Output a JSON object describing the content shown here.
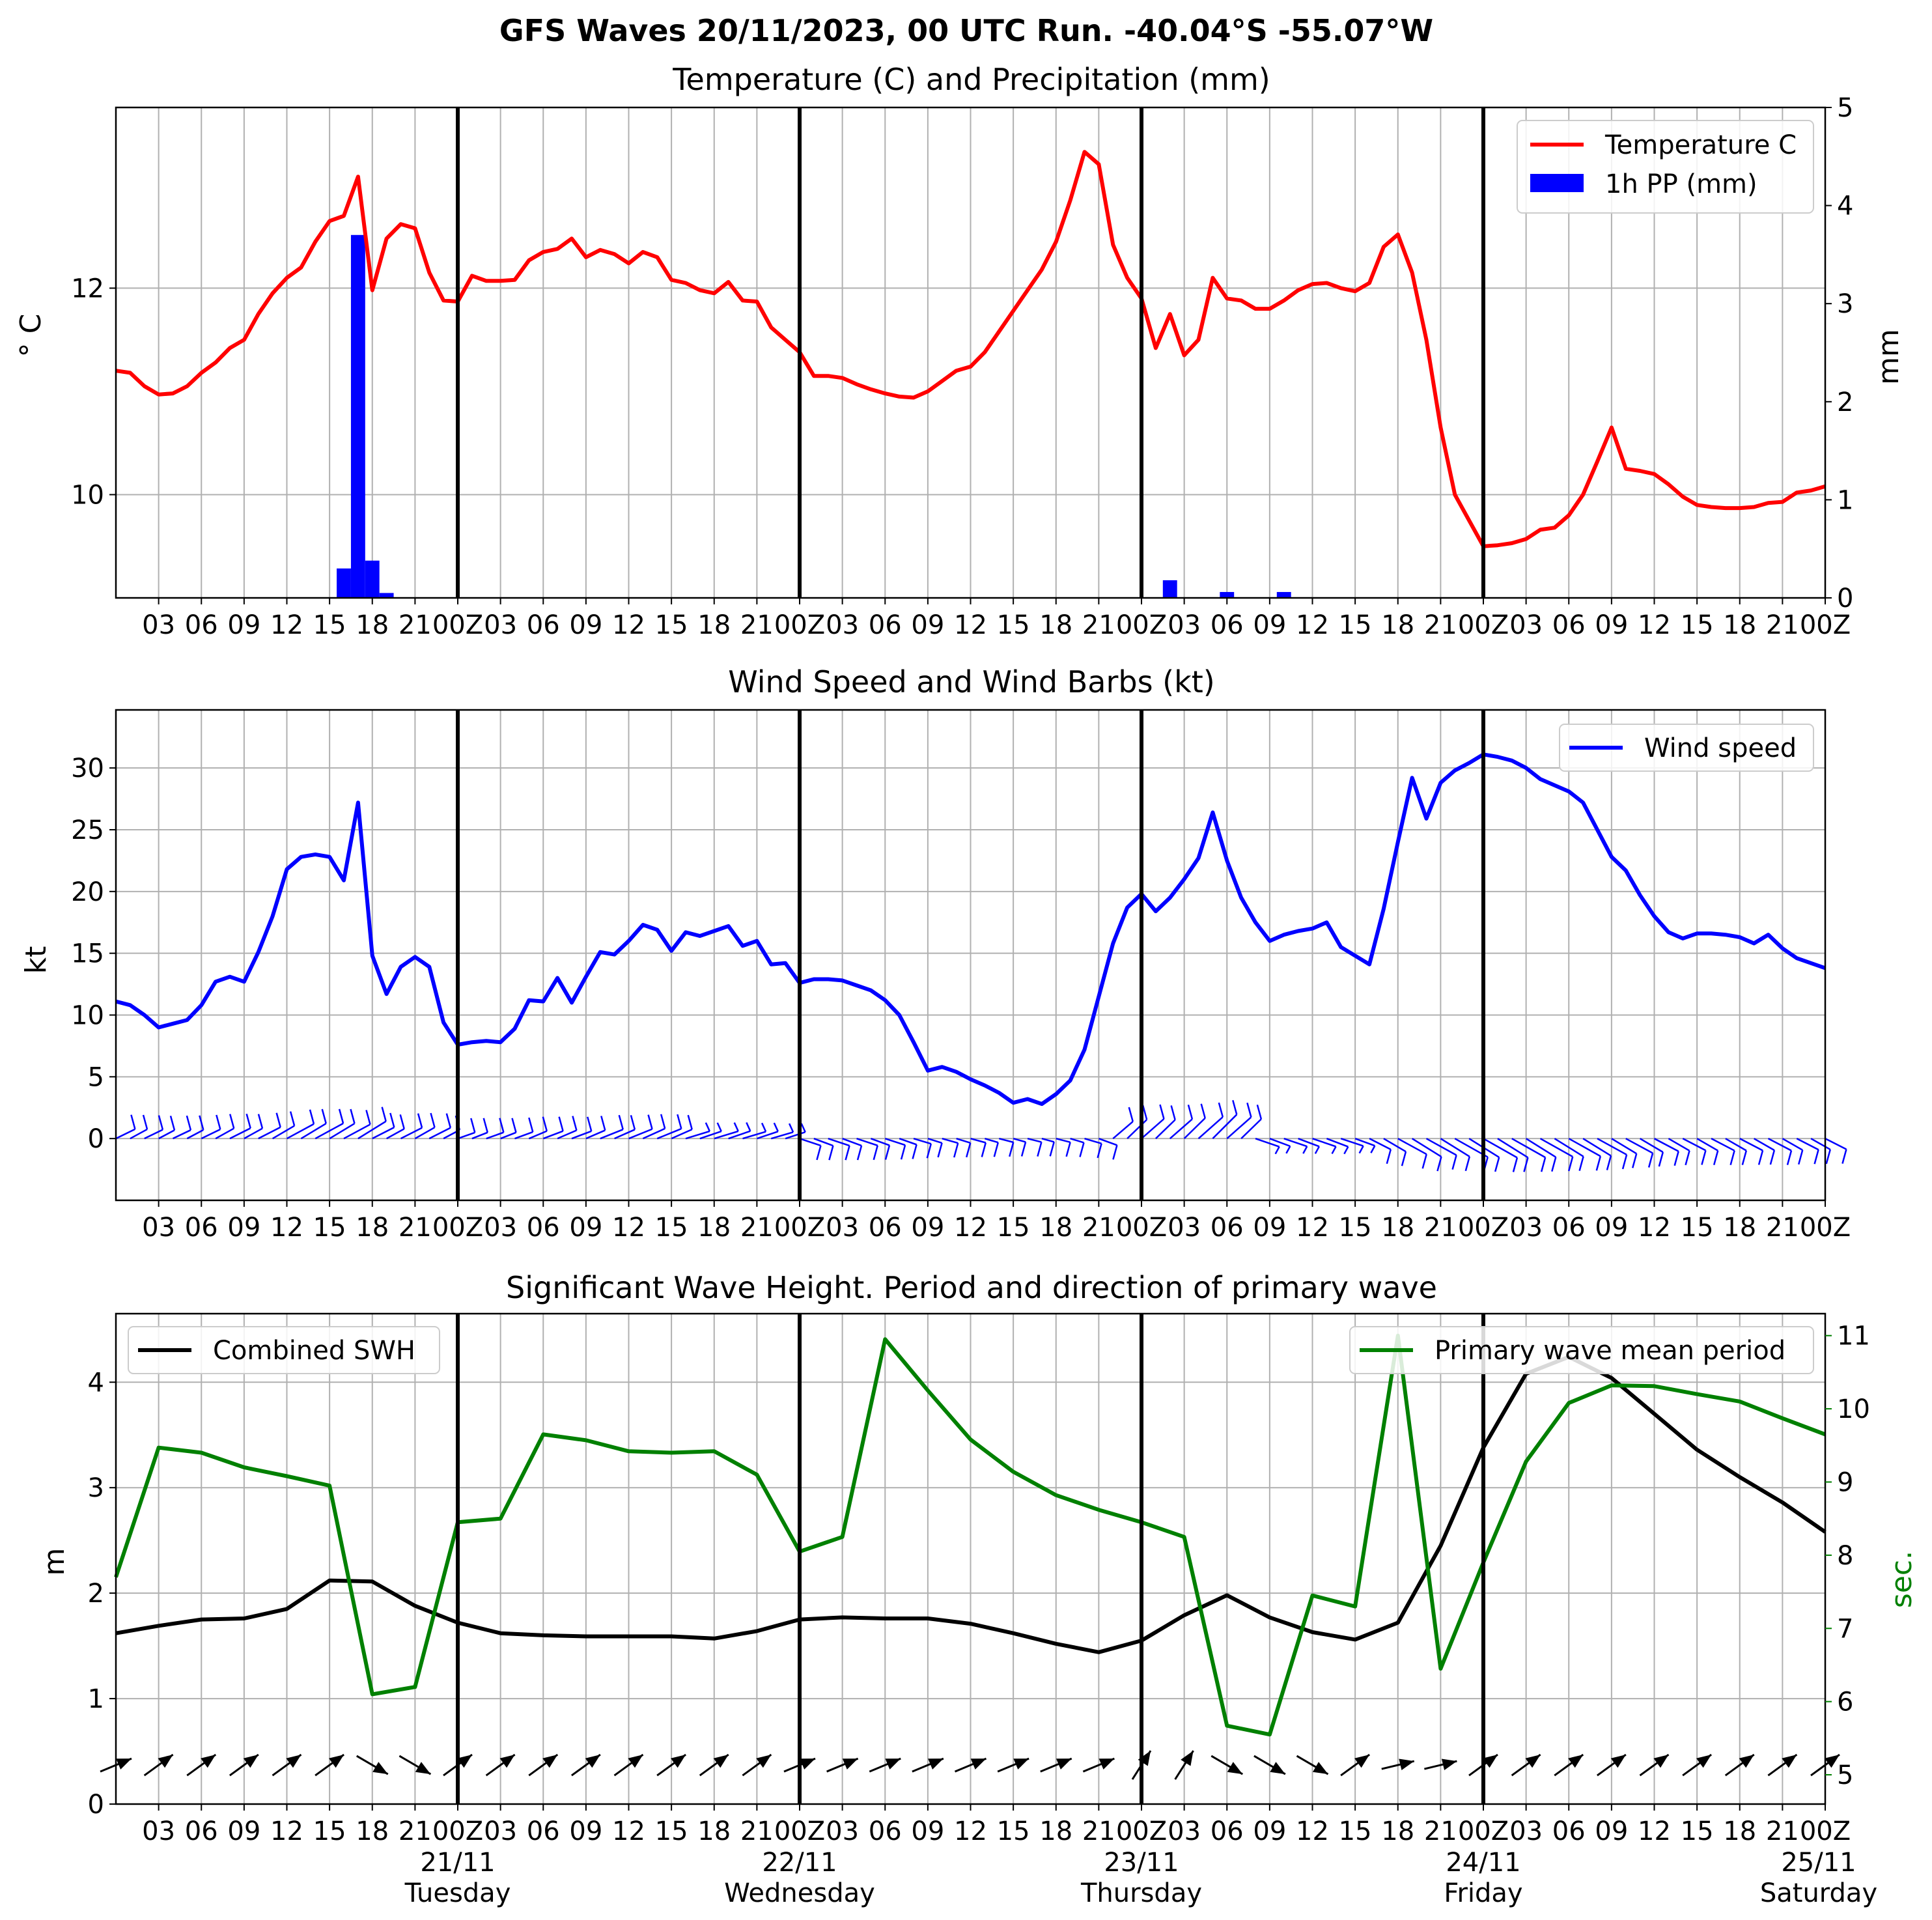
{
  "figure": {
    "suptitle": "GFS Waves 20/11/2023, 00 UTC Run. -40.04°S -55.07°W"
  },
  "x_axis": {
    "hour_labels": [
      "03",
      "06",
      "09",
      "12",
      "15",
      "18",
      "21",
      "00Z",
      "03",
      "06",
      "09",
      "12",
      "15",
      "18",
      "21",
      "00Z",
      "03",
      "06",
      "09",
      "12",
      "15",
      "18",
      "21",
      "00Z",
      "03",
      "06",
      "09",
      "12",
      "15",
      "18",
      "21",
      "00Z",
      "03",
      "06",
      "09",
      "12",
      "15",
      "18",
      "21",
      "00Z"
    ],
    "day_labels": [
      {
        "date": "21/11",
        "weekday": "Tuesday"
      },
      {
        "date": "22/11",
        "weekday": "Wednesday"
      },
      {
        "date": "23/11",
        "weekday": "Thursday"
      },
      {
        "date": "24/11",
        "weekday": "Friday"
      },
      {
        "date": "25/11",
        "weekday": "Saturday"
      }
    ]
  },
  "colors": {
    "temperature": "#ff0000",
    "precipitation": "#0000ff",
    "wind": "#0000ff",
    "swh": "#000000",
    "period": "#008000",
    "grid": "#b0b0b0"
  },
  "chart_data": [
    {
      "type": "line",
      "title": "Temperature (C) and Precipitation (mm)",
      "ylabel": "° C",
      "ylabel_right": "mm",
      "xlim_hours": [
        0,
        120
      ],
      "ylim": [
        9.0,
        13.75
      ],
      "ylim_right": [
        0,
        5
      ],
      "y_ticks": [
        10,
        12
      ],
      "y_ticks_right": [
        0,
        1,
        2,
        3,
        4,
        5
      ],
      "grid": true,
      "legend_position": "top-right",
      "legend": [
        "Temperature C",
        "1h PP (mm)"
      ],
      "series": [
        {
          "name": "Temperature C",
          "x": [
            0,
            1,
            2,
            3,
            4,
            5,
            6,
            7,
            8,
            9,
            10,
            11,
            12,
            13,
            14,
            15,
            16,
            17,
            18,
            19,
            20,
            21,
            22,
            23,
            24,
            25,
            26,
            27,
            28,
            29,
            30,
            31,
            32,
            33,
            34,
            35,
            36,
            37,
            38,
            39,
            40,
            41,
            42,
            43,
            44,
            45,
            46,
            47,
            48,
            49,
            50,
            51,
            52,
            53,
            54,
            55,
            56,
            57,
            58,
            59,
            60,
            61,
            62,
            63,
            64,
            65,
            66,
            67,
            68,
            69,
            70,
            71,
            72,
            73,
            74,
            75,
            76,
            77,
            78,
            79,
            80,
            81,
            82,
            83,
            84,
            85,
            86,
            87,
            88,
            89,
            90,
            91,
            92,
            93,
            94,
            95,
            96,
            97,
            98,
            99,
            100,
            101,
            102,
            103,
            104,
            105,
            106,
            107,
            108,
            109,
            110,
            111,
            112,
            113,
            114,
            115,
            116,
            117,
            118,
            119,
            120
          ],
          "values": [
            11.2,
            11.18,
            11.05,
            10.97,
            10.98,
            11.05,
            11.18,
            11.28,
            11.42,
            11.5,
            11.75,
            11.95,
            12.1,
            12.2,
            12.45,
            12.65,
            12.7,
            13.08,
            11.98,
            12.48,
            12.62,
            12.58,
            12.15,
            11.88,
            11.87,
            12.12,
            12.07,
            12.07,
            12.08,
            12.27,
            12.35,
            12.38,
            12.48,
            12.3,
            12.37,
            12.33,
            12.24,
            12.35,
            12.3,
            12.08,
            12.05,
            11.98,
            11.95,
            12.06,
            11.88,
            11.87,
            11.62,
            11.5,
            11.38,
            11.15,
            11.15,
            11.13,
            11.07,
            11.02,
            10.98,
            10.95,
            10.94,
            11.0,
            11.1,
            11.2,
            11.24,
            11.38,
            11.58,
            11.78,
            11.98,
            12.18,
            12.45,
            12.85,
            13.32,
            13.2,
            12.42,
            12.1,
            11.9,
            11.42,
            11.75,
            11.35,
            11.5,
            12.1,
            11.9,
            11.88,
            11.8,
            11.8,
            11.88,
            11.98,
            12.04,
            12.05,
            12.0,
            11.97,
            12.05,
            12.4,
            12.52,
            12.15,
            11.5,
            10.65,
            10.0,
            9.75,
            9.5,
            9.51,
            9.53,
            9.57,
            9.66,
            9.68,
            9.8,
            10.0,
            10.32,
            10.65,
            10.25,
            10.23,
            10.2,
            10.1,
            9.98,
            9.9,
            9.88,
            9.87,
            9.87,
            9.88,
            9.92,
            9.93,
            10.02,
            10.04,
            10.08
          ]
        },
        {
          "name": "1h PP (mm)",
          "type": "bar",
          "x": [
            16,
            17,
            18,
            19,
            74,
            78,
            82
          ],
          "values": [
            0.3,
            3.7,
            0.38,
            0.05,
            0.18,
            0.06,
            0.06
          ]
        }
      ]
    },
    {
      "type": "line",
      "title": "Wind Speed and Wind Barbs (kt)",
      "ylabel": "kt",
      "xlim_hours": [
        0,
        120
      ],
      "ylim": [
        -5,
        34.7
      ],
      "y_ticks": [
        0,
        5,
        10,
        15,
        20,
        25,
        30
      ],
      "grid": true,
      "legend_position": "top-right",
      "legend": [
        "Wind speed"
      ],
      "series": [
        {
          "name": "Wind speed",
          "x": [
            0,
            1,
            2,
            3,
            4,
            5,
            6,
            7,
            8,
            9,
            10,
            11,
            12,
            13,
            14,
            15,
            16,
            17,
            18,
            19,
            20,
            21,
            22,
            23,
            24,
            25,
            26,
            27,
            28,
            29,
            30,
            31,
            32,
            33,
            34,
            35,
            36,
            37,
            38,
            39,
            40,
            41,
            42,
            43,
            44,
            45,
            46,
            47,
            48,
            49,
            50,
            51,
            52,
            53,
            54,
            55,
            56,
            57,
            58,
            59,
            60,
            61,
            62,
            63,
            64,
            65,
            66,
            67,
            68,
            69,
            70,
            71,
            72,
            73,
            74,
            75,
            76,
            77,
            78,
            79,
            80,
            81,
            82,
            83,
            84,
            85,
            86,
            87,
            88,
            89,
            90,
            91,
            92,
            93,
            94,
            95,
            96,
            97,
            98,
            99,
            100,
            101,
            102,
            103,
            104,
            105,
            106,
            107,
            108,
            109,
            110,
            111,
            112,
            113,
            114,
            115,
            116,
            117,
            118,
            119,
            120
          ],
          "values": [
            11.1,
            10.8,
            10.0,
            9.0,
            9.3,
            9.6,
            10.8,
            12.7,
            13.1,
            12.7,
            15.1,
            18.0,
            21.8,
            22.8,
            23.0,
            22.8,
            20.9,
            27.2,
            14.8,
            11.7,
            13.9,
            14.7,
            13.9,
            9.4,
            7.6,
            7.8,
            7.9,
            7.8,
            8.9,
            11.2,
            11.1,
            13.0,
            11.0,
            13.1,
            15.1,
            14.9,
            16.0,
            17.3,
            16.9,
            15.2,
            16.7,
            16.4,
            16.8,
            17.2,
            15.6,
            16.0,
            14.1,
            14.2,
            12.6,
            12.9,
            12.9,
            12.8,
            12.4,
            12.0,
            11.2,
            10.0,
            7.8,
            5.5,
            5.8,
            5.4,
            4.8,
            4.3,
            3.7,
            2.9,
            3.2,
            2.8,
            3.6,
            4.7,
            7.2,
            11.5,
            15.8,
            18.7,
            19.8,
            18.4,
            19.5,
            21.0,
            22.7,
            26.4,
            22.5,
            19.5,
            17.5,
            16.0,
            16.5,
            16.8,
            17.0,
            17.5,
            15.5,
            14.8,
            14.1,
            18.6,
            24.0,
            29.2,
            25.9,
            28.8,
            29.8,
            30.4,
            31.1,
            30.9,
            30.6,
            30.0,
            29.1,
            28.6,
            28.1,
            27.2,
            25.0,
            22.8,
            21.7,
            19.7,
            18.0,
            16.7,
            16.2,
            16.6,
            16.6,
            16.5,
            16.3,
            15.8,
            16.5,
            15.4,
            14.6,
            14.2,
            13.8
          ]
        },
        {
          "name": "Wind barbs",
          "type": "barbs",
          "x_hours": [
            0,
            120
          ],
          "interval_hours": 1
        }
      ]
    },
    {
      "type": "line",
      "title": "Significant Wave Height. Period and direction of primary wave",
      "ylabel": "m",
      "ylabel_right": "sec.",
      "xlim_hours": [
        0,
        120
      ],
      "ylim": [
        0,
        4.65
      ],
      "ylim_right": [
        4.6,
        11.3
      ],
      "y_ticks": [
        0,
        1,
        2,
        3,
        4
      ],
      "y_ticks_right": [
        5,
        6,
        7,
        8,
        9,
        10,
        11
      ],
      "grid": true,
      "legend": [
        {
          "label": "Combined SWH",
          "position": "top-left"
        },
        {
          "label": "Primary wave mean period",
          "position": "top-right"
        }
      ],
      "series": [
        {
          "name": "Combined SWH",
          "x": [
            0,
            3,
            6,
            9,
            12,
            15,
            18,
            21,
            24,
            27,
            30,
            33,
            36,
            39,
            42,
            45,
            48,
            51,
            54,
            57,
            60,
            63,
            66,
            69,
            72,
            75,
            78,
            81,
            84,
            87,
            90,
            93,
            96,
            99,
            102,
            105,
            108,
            111,
            114,
            117,
            120
          ],
          "values": [
            1.62,
            1.69,
            1.75,
            1.76,
            1.85,
            2.12,
            2.11,
            1.88,
            1.72,
            1.62,
            1.6,
            1.59,
            1.59,
            1.59,
            1.57,
            1.64,
            1.75,
            1.77,
            1.76,
            1.76,
            1.71,
            1.62,
            1.52,
            1.44,
            1.55,
            1.79,
            1.98,
            1.77,
            1.63,
            1.56,
            1.72,
            2.45,
            3.38,
            4.08,
            4.24,
            4.04,
            3.7,
            3.36,
            3.1,
            2.86,
            2.58
          ]
        },
        {
          "name": "Primary wave mean period",
          "x": [
            0,
            3,
            6,
            9,
            12,
            15,
            18,
            21,
            24,
            27,
            30,
            33,
            36,
            39,
            42,
            45,
            48,
            51,
            54,
            57,
            60,
            63,
            66,
            69,
            72,
            75,
            78,
            81,
            84,
            87,
            90,
            93,
            96,
            99,
            102,
            105,
            108,
            111,
            114,
            117,
            120
          ],
          "values": [
            7.7,
            9.47,
            9.4,
            9.2,
            9.08,
            8.95,
            6.1,
            6.2,
            8.45,
            8.5,
            9.65,
            9.57,
            9.42,
            9.4,
            9.42,
            9.1,
            8.05,
            8.25,
            10.95,
            10.25,
            9.58,
            9.14,
            8.82,
            8.62,
            8.45,
            8.25,
            5.67,
            5.55,
            7.45,
            7.3,
            11.0,
            6.45,
            7.9,
            9.28,
            10.08,
            10.32,
            10.31,
            10.2,
            10.1,
            9.87,
            9.65
          ]
        },
        {
          "name": "Primary wave direction",
          "type": "arrows",
          "x_hours": [
            0,
            3,
            6,
            9,
            12,
            15,
            18,
            21,
            24,
            27,
            30,
            33,
            36,
            39,
            42,
            45,
            48,
            51,
            54,
            57,
            60,
            63,
            66,
            69,
            72,
            75,
            78,
            81,
            84,
            87,
            90,
            93,
            96,
            99,
            102,
            105,
            108,
            111,
            114,
            117,
            120
          ]
        }
      ]
    }
  ]
}
